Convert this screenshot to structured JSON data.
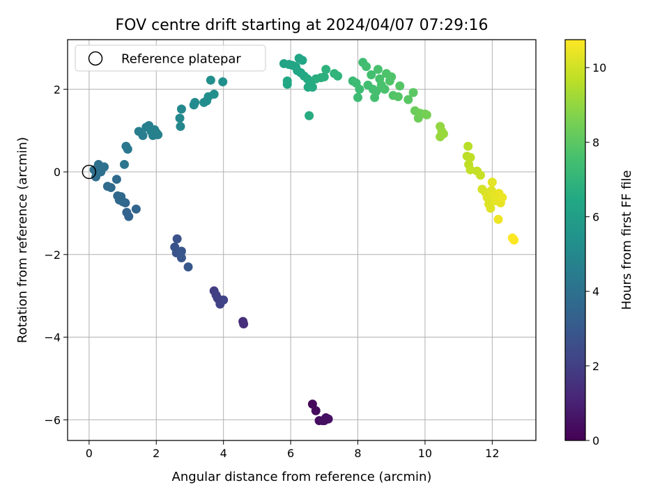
{
  "chart_data": {
    "type": "scatter",
    "title": "FOV centre drift starting at 2024/04/07 07:29:16",
    "xlabel": "Angular distance from reference (arcmin)",
    "ylabel": "Rotation from reference (arcmin)",
    "xlim": [
      -0.64,
      13.3
    ],
    "ylim": [
      -6.5,
      3.2
    ],
    "xticks": [
      0,
      2,
      4,
      6,
      8,
      10,
      12
    ],
    "xtick_labels": [
      "0",
      "2",
      "4",
      "6",
      "8",
      "10",
      "12"
    ],
    "yticks": [
      -6,
      -4,
      -2,
      0,
      2
    ],
    "ytick_labels": [
      "−6",
      "−4",
      "−2",
      "0",
      "2"
    ],
    "grid": true,
    "legend": {
      "placement": "upper-left",
      "entries": [
        {
          "label": "Reference platepar",
          "marker": "open-circle"
        }
      ]
    },
    "reference_point": {
      "x": 0,
      "y": 0
    },
    "colorbar": {
      "label": "Hours from first FF file",
      "colormap": "viridis",
      "range": [
        0,
        10.75
      ],
      "ticks": [
        0,
        2,
        4,
        6,
        8,
        10
      ],
      "tick_labels": [
        "0",
        "2",
        "4",
        "6",
        "8",
        "10"
      ]
    },
    "points": [
      {
        "x": 6.65,
        "y": -5.62,
        "c": 0.2
      },
      {
        "x": 6.75,
        "y": -5.78,
        "c": 0.3
      },
      {
        "x": 6.85,
        "y": -6.02,
        "c": 0.4
      },
      {
        "x": 6.95,
        "y": -6.02,
        "c": 0.4
      },
      {
        "x": 7.05,
        "y": -5.95,
        "c": 0.5
      },
      {
        "x": 7.12,
        "y": -5.98,
        "c": 0.5
      },
      {
        "x": 7.0,
        "y": -6.02,
        "c": 0.45
      },
      {
        "x": 4.58,
        "y": -3.62,
        "c": 1.4
      },
      {
        "x": 4.6,
        "y": -3.68,
        "c": 1.45
      },
      {
        "x": 3.72,
        "y": -2.88,
        "c": 1.9
      },
      {
        "x": 3.78,
        "y": -2.98,
        "c": 2.0
      },
      {
        "x": 3.85,
        "y": -3.08,
        "c": 2.05
      },
      {
        "x": 3.9,
        "y": -3.2,
        "c": 2.1
      },
      {
        "x": 4.0,
        "y": -3.1,
        "c": 2.15
      },
      {
        "x": 3.82,
        "y": -3.05,
        "c": 2.0
      },
      {
        "x": 2.62,
        "y": -1.62,
        "c": 2.7
      },
      {
        "x": 2.55,
        "y": -1.82,
        "c": 2.75
      },
      {
        "x": 2.6,
        "y": -1.96,
        "c": 2.8
      },
      {
        "x": 2.75,
        "y": -1.92,
        "c": 2.85
      },
      {
        "x": 2.75,
        "y": -2.08,
        "c": 2.9
      },
      {
        "x": 2.95,
        "y": -2.3,
        "c": 2.95
      },
      {
        "x": 1.18,
        "y": -1.08,
        "c": 3.4
      },
      {
        "x": 1.12,
        "y": -0.98,
        "c": 3.45
      },
      {
        "x": 1.4,
        "y": -0.9,
        "c": 3.5
      },
      {
        "x": 1.08,
        "y": -0.75,
        "c": 3.55
      },
      {
        "x": 1.0,
        "y": -0.72,
        "c": 3.6
      },
      {
        "x": 0.9,
        "y": -0.68,
        "c": 3.6
      },
      {
        "x": 0.85,
        "y": -0.58,
        "c": 3.65
      },
      {
        "x": 0.95,
        "y": -0.6,
        "c": 3.65
      },
      {
        "x": 0.82,
        "y": -0.18,
        "c": 3.7
      },
      {
        "x": 0.65,
        "y": -0.38,
        "c": 3.75
      },
      {
        "x": 0.55,
        "y": -0.35,
        "c": 3.75
      },
      {
        "x": 0.2,
        "y": -0.12,
        "c": 3.85
      },
      {
        "x": 0.15,
        "y": 0.05,
        "c": 3.9
      },
      {
        "x": 0.22,
        "y": 0.0,
        "c": 3.9
      },
      {
        "x": 0.3,
        "y": 0.02,
        "c": 3.9
      },
      {
        "x": 0.28,
        "y": 0.18,
        "c": 3.95
      },
      {
        "x": 0.38,
        "y": 0.08,
        "c": 3.95
      },
      {
        "x": 0.45,
        "y": 0.12,
        "c": 4.0
      },
      {
        "x": 0.35,
        "y": 0.0,
        "c": 4.0
      },
      {
        "x": 1.05,
        "y": 0.18,
        "c": 4.2
      },
      {
        "x": 1.1,
        "y": 0.62,
        "c": 4.3
      },
      {
        "x": 1.15,
        "y": 0.55,
        "c": 4.3
      },
      {
        "x": 1.48,
        "y": 0.98,
        "c": 4.5
      },
      {
        "x": 1.6,
        "y": 0.88,
        "c": 4.55
      },
      {
        "x": 1.7,
        "y": 1.08,
        "c": 4.6
      },
      {
        "x": 1.78,
        "y": 1.12,
        "c": 4.6
      },
      {
        "x": 1.85,
        "y": 0.98,
        "c": 4.65
      },
      {
        "x": 1.9,
        "y": 0.88,
        "c": 4.65
      },
      {
        "x": 2.0,
        "y": 0.95,
        "c": 4.7
      },
      {
        "x": 2.05,
        "y": 0.9,
        "c": 4.7
      },
      {
        "x": 1.95,
        "y": 1.02,
        "c": 4.7
      },
      {
        "x": 2.72,
        "y": 1.1,
        "c": 4.95
      },
      {
        "x": 2.7,
        "y": 1.3,
        "c": 5.0
      },
      {
        "x": 2.75,
        "y": 1.52,
        "c": 5.0
      },
      {
        "x": 3.12,
        "y": 1.62,
        "c": 5.1
      },
      {
        "x": 3.15,
        "y": 1.68,
        "c": 5.1
      },
      {
        "x": 3.42,
        "y": 1.68,
        "c": 5.2
      },
      {
        "x": 3.5,
        "y": 1.72,
        "c": 5.2
      },
      {
        "x": 3.55,
        "y": 1.82,
        "c": 5.25
      },
      {
        "x": 3.62,
        "y": 2.22,
        "c": 5.3
      },
      {
        "x": 3.72,
        "y": 1.88,
        "c": 5.3
      },
      {
        "x": 3.98,
        "y": 2.18,
        "c": 5.35
      },
      {
        "x": 5.8,
        "y": 2.62,
        "c": 6.2
      },
      {
        "x": 5.95,
        "y": 2.6,
        "c": 6.25
      },
      {
        "x": 6.05,
        "y": 2.58,
        "c": 6.25
      },
      {
        "x": 6.15,
        "y": 2.55,
        "c": 6.3
      },
      {
        "x": 6.25,
        "y": 2.75,
        "c": 6.3
      },
      {
        "x": 6.35,
        "y": 2.7,
        "c": 6.35
      },
      {
        "x": 6.2,
        "y": 2.45,
        "c": 6.35
      },
      {
        "x": 6.3,
        "y": 2.4,
        "c": 6.4
      },
      {
        "x": 5.9,
        "y": 2.2,
        "c": 6.4
      },
      {
        "x": 5.9,
        "y": 2.12,
        "c": 6.4
      },
      {
        "x": 6.4,
        "y": 2.32,
        "c": 6.45
      },
      {
        "x": 6.5,
        "y": 2.25,
        "c": 6.5
      },
      {
        "x": 6.52,
        "y": 2.05,
        "c": 6.5
      },
      {
        "x": 6.6,
        "y": 2.15,
        "c": 6.55
      },
      {
        "x": 6.65,
        "y": 2.05,
        "c": 6.55
      },
      {
        "x": 6.55,
        "y": 1.36,
        "c": 6.6
      },
      {
        "x": 6.75,
        "y": 2.25,
        "c": 6.7
      },
      {
        "x": 6.9,
        "y": 2.28,
        "c": 6.75
      },
      {
        "x": 7.0,
        "y": 2.3,
        "c": 6.8
      },
      {
        "x": 7.05,
        "y": 2.48,
        "c": 6.85
      },
      {
        "x": 7.3,
        "y": 2.38,
        "c": 6.95
      },
      {
        "x": 7.4,
        "y": 2.32,
        "c": 7.0
      },
      {
        "x": 7.85,
        "y": 2.2,
        "c": 7.25
      },
      {
        "x": 7.95,
        "y": 2.15,
        "c": 7.3
      },
      {
        "x": 8.0,
        "y": 1.8,
        "c": 7.35
      },
      {
        "x": 8.05,
        "y": 2.0,
        "c": 7.35
      },
      {
        "x": 8.15,
        "y": 2.65,
        "c": 7.4
      },
      {
        "x": 8.25,
        "y": 2.55,
        "c": 7.45
      },
      {
        "x": 8.3,
        "y": 2.1,
        "c": 7.45
      },
      {
        "x": 8.4,
        "y": 2.35,
        "c": 7.5
      },
      {
        "x": 8.45,
        "y": 2.0,
        "c": 7.5
      },
      {
        "x": 8.5,
        "y": 1.8,
        "c": 7.55
      },
      {
        "x": 8.55,
        "y": 1.95,
        "c": 7.55
      },
      {
        "x": 8.6,
        "y": 2.48,
        "c": 7.6
      },
      {
        "x": 8.65,
        "y": 2.25,
        "c": 7.6
      },
      {
        "x": 8.7,
        "y": 2.1,
        "c": 7.65
      },
      {
        "x": 8.8,
        "y": 2.0,
        "c": 7.65
      },
      {
        "x": 8.85,
        "y": 2.38,
        "c": 7.7
      },
      {
        "x": 8.95,
        "y": 2.2,
        "c": 7.75
      },
      {
        "x": 9.0,
        "y": 2.3,
        "c": 7.75
      },
      {
        "x": 9.05,
        "y": 1.85,
        "c": 7.8
      },
      {
        "x": 9.2,
        "y": 1.82,
        "c": 7.85
      },
      {
        "x": 9.25,
        "y": 2.08,
        "c": 7.85
      },
      {
        "x": 9.5,
        "y": 1.75,
        "c": 7.95
      },
      {
        "x": 9.65,
        "y": 1.92,
        "c": 8.0
      },
      {
        "x": 9.7,
        "y": 1.48,
        "c": 8.3
      },
      {
        "x": 9.8,
        "y": 1.3,
        "c": 8.35
      },
      {
        "x": 9.85,
        "y": 1.42,
        "c": 8.4
      },
      {
        "x": 10.0,
        "y": 1.4,
        "c": 8.45
      },
      {
        "x": 10.05,
        "y": 1.38,
        "c": 8.5
      },
      {
        "x": 10.45,
        "y": 1.1,
        "c": 9.0
      },
      {
        "x": 10.5,
        "y": 0.98,
        "c": 9.05
      },
      {
        "x": 10.45,
        "y": 0.85,
        "c": 9.05
      },
      {
        "x": 10.55,
        "y": 0.92,
        "c": 9.1
      },
      {
        "x": 11.28,
        "y": 0.62,
        "c": 9.6
      },
      {
        "x": 11.25,
        "y": 0.38,
        "c": 9.65
      },
      {
        "x": 11.35,
        "y": 0.35,
        "c": 9.7
      },
      {
        "x": 11.3,
        "y": 0.18,
        "c": 9.7
      },
      {
        "x": 11.35,
        "y": 0.05,
        "c": 9.75
      },
      {
        "x": 11.55,
        "y": 0.02,
        "c": 9.8
      },
      {
        "x": 11.65,
        "y": -0.08,
        "c": 9.85
      },
      {
        "x": 11.7,
        "y": -0.42,
        "c": 10.1
      },
      {
        "x": 11.8,
        "y": -0.5,
        "c": 10.15
      },
      {
        "x": 11.85,
        "y": -0.62,
        "c": 10.2
      },
      {
        "x": 11.9,
        "y": -0.78,
        "c": 10.2
      },
      {
        "x": 11.95,
        "y": -0.88,
        "c": 10.25
      },
      {
        "x": 11.98,
        "y": -0.45,
        "c": 10.25
      },
      {
        "x": 12.0,
        "y": -0.25,
        "c": 10.3
      },
      {
        "x": 12.05,
        "y": -0.55,
        "c": 10.3
      },
      {
        "x": 12.1,
        "y": -0.7,
        "c": 10.35
      },
      {
        "x": 12.15,
        "y": -0.6,
        "c": 10.35
      },
      {
        "x": 12.2,
        "y": -0.52,
        "c": 10.4
      },
      {
        "x": 12.25,
        "y": -0.75,
        "c": 10.4
      },
      {
        "x": 12.3,
        "y": -0.62,
        "c": 10.45
      },
      {
        "x": 12.18,
        "y": -1.15,
        "c": 10.5
      },
      {
        "x": 12.6,
        "y": -1.6,
        "c": 10.7
      },
      {
        "x": 12.65,
        "y": -1.65,
        "c": 10.75
      }
    ]
  }
}
